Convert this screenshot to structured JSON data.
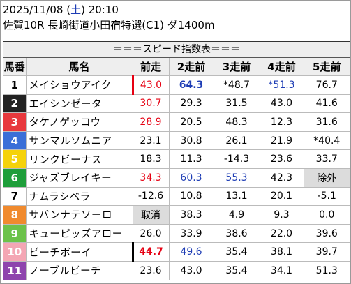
{
  "header": {
    "date": "2025/11/08 (",
    "weekday": "土",
    "time": ") 20:10",
    "race": "佐賀10R 長崎街道小田宿特選(C1) ダ1400m"
  },
  "table_title": "＝＝＝スピード指数表＝＝＝",
  "columns": [
    "馬番",
    "馬名",
    "前走",
    "2走前",
    "3走前",
    "4走前",
    "5走前"
  ],
  "colors": {
    "red": "#e60012",
    "blue": "#1e3db5",
    "gray_cell": "#dcdcdc"
  },
  "rows": [
    {
      "num": "1",
      "bg": "#ffffff",
      "fg": "#000000",
      "name": "メイショウアイク",
      "bar": "red",
      "cells": [
        {
          "v": "43.0",
          "c": "red"
        },
        {
          "v": "64.3",
          "c": "blue",
          "b": true
        },
        {
          "v": "*48.7"
        },
        {
          "v": "*51.3",
          "c": "blue"
        },
        {
          "v": "76.7"
        }
      ]
    },
    {
      "num": "2",
      "bg": "#222222",
      "fg": "#ffffff",
      "name": "エイシンゼータ",
      "cells": [
        {
          "v": "30.7",
          "c": "red"
        },
        {
          "v": "29.3"
        },
        {
          "v": "31.5"
        },
        {
          "v": "43.0"
        },
        {
          "v": "41.6"
        }
      ]
    },
    {
      "num": "3",
      "bg": "#e8383d",
      "fg": "#ffffff",
      "name": "タケノゲッコウ",
      "cells": [
        {
          "v": "28.9",
          "c": "red"
        },
        {
          "v": "20.5"
        },
        {
          "v": "48.3"
        },
        {
          "v": "12.3"
        },
        {
          "v": "31.6"
        }
      ]
    },
    {
      "num": "4",
      "bg": "#3a6fd8",
      "fg": "#ffffff",
      "name": "サンマルソムニア",
      "cells": [
        {
          "v": "23.1"
        },
        {
          "v": "30.8"
        },
        {
          "v": "26.1"
        },
        {
          "v": "21.9"
        },
        {
          "v": "*40.4"
        }
      ]
    },
    {
      "num": "5",
      "bg": "#f5d20a",
      "fg": "#ffffff",
      "name": "リンクビーナス",
      "cells": [
        {
          "v": "18.3"
        },
        {
          "v": "11.3"
        },
        {
          "v": "-14.3"
        },
        {
          "v": "23.6"
        },
        {
          "v": "33.7"
        }
      ]
    },
    {
      "num": "6",
      "bg": "#1e9e3a",
      "fg": "#ffffff",
      "name": "ジャズブレイキー",
      "cells": [
        {
          "v": "34.3",
          "c": "red"
        },
        {
          "v": "60.3",
          "c": "blue"
        },
        {
          "v": "55.3",
          "c": "blue"
        },
        {
          "v": "42.3"
        },
        {
          "v": "除外",
          "g": true
        }
      ]
    },
    {
      "num": "7",
      "bg": "#ffffff",
      "fg": "#000000",
      "name": "ナムラシベラ",
      "cells": [
        {
          "v": "-12.6"
        },
        {
          "v": "10.8"
        },
        {
          "v": "13.1"
        },
        {
          "v": "20.1"
        },
        {
          "v": "-5.1"
        }
      ]
    },
    {
      "num": "8",
      "bg": "#f08a2e",
      "fg": "#ffffff",
      "name": "サバンナテソーロ",
      "cells": [
        {
          "v": "取消",
          "g": true
        },
        {
          "v": "38.3"
        },
        {
          "v": "4.9"
        },
        {
          "v": "9.3"
        },
        {
          "v": "0.0"
        }
      ]
    },
    {
      "num": "9",
      "bg": "#6cc24a",
      "fg": "#ffffff",
      "name": "キューピッズアロー",
      "cells": [
        {
          "v": "26.0"
        },
        {
          "v": "33.9"
        },
        {
          "v": "38.6"
        },
        {
          "v": "22.0"
        },
        {
          "v": "39.6"
        }
      ]
    },
    {
      "num": "10",
      "bg": "#f4a6b4",
      "fg": "#ffffff",
      "name": "ビーチボーイ",
      "bar": "black",
      "cells": [
        {
          "v": "44.7",
          "c": "red",
          "b": true
        },
        {
          "v": "49.6",
          "c": "blue"
        },
        {
          "v": "35.4"
        },
        {
          "v": "38.1"
        },
        {
          "v": "39.7"
        }
      ]
    },
    {
      "num": "11",
      "bg": "#8e44ad",
      "fg": "#ffffff",
      "name": "ノーブルビーチ",
      "cells": [
        {
          "v": "23.6"
        },
        {
          "v": "43.0"
        },
        {
          "v": "35.4"
        },
        {
          "v": "34.1"
        },
        {
          "v": "51.3"
        }
      ]
    }
  ]
}
